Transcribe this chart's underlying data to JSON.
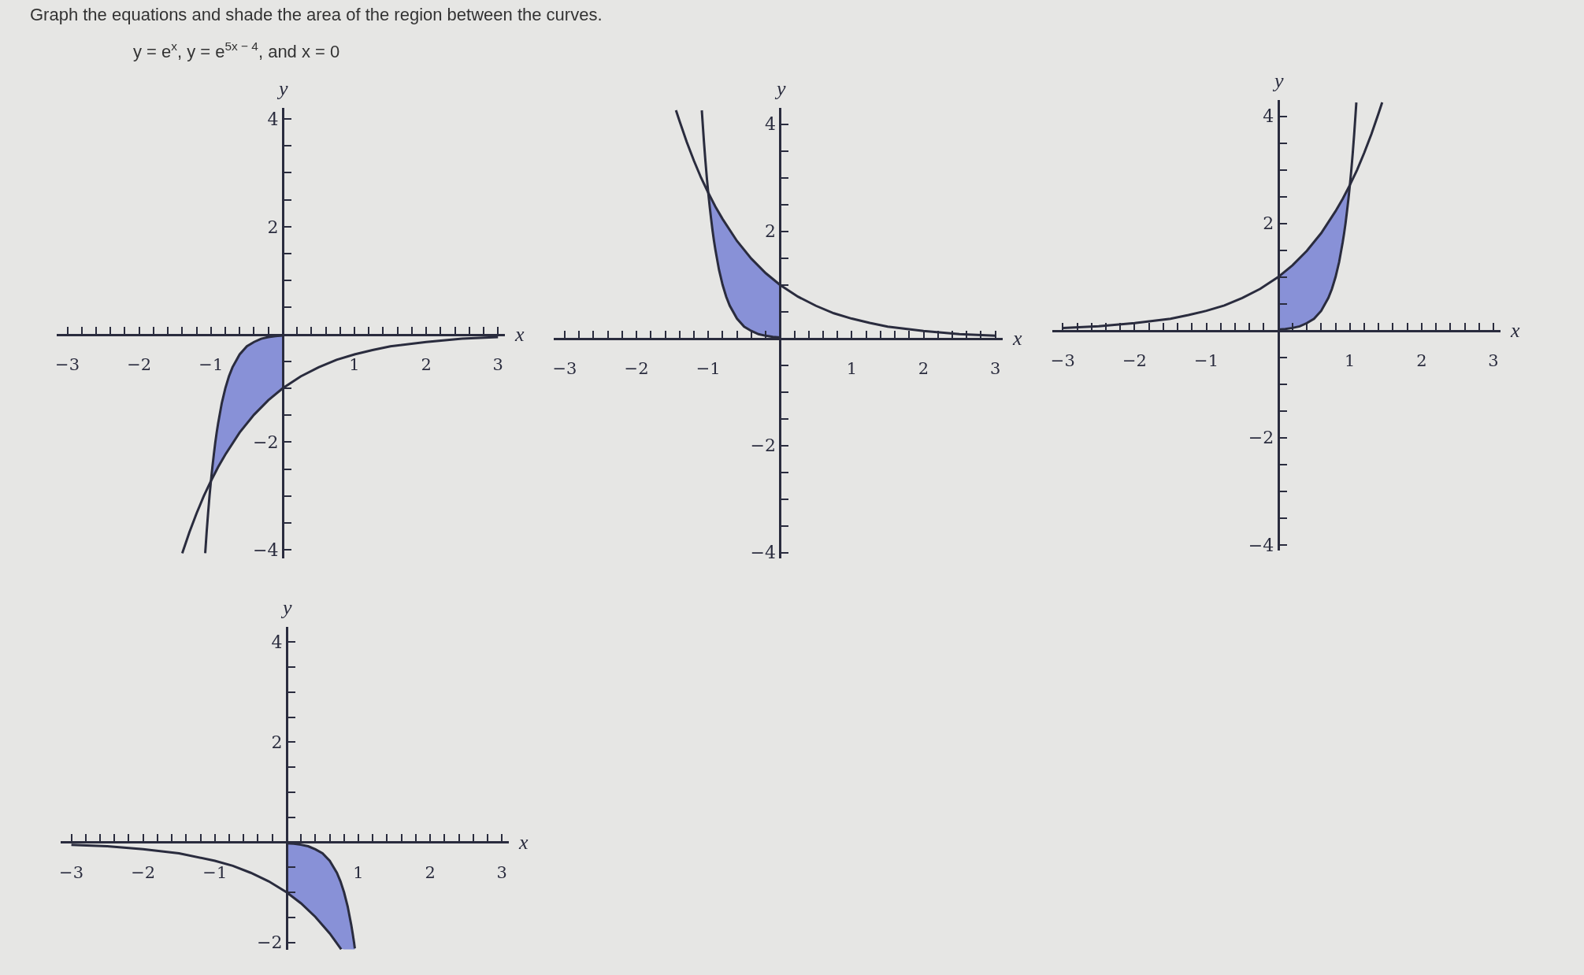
{
  "chart_data": [
    {
      "type": "line",
      "title": "Graph the equations and shade the area of the region between the curves.",
      "subtitle": "y = e$^{x}$, y = e$^{5x − 4}$, and x = 0",
      "xlabel": "x",
      "ylabel": "y",
      "xlim": [
        -3.15,
        3.1
      ],
      "ylim": [
        -4.15,
        4.2
      ],
      "xticks": [
        -3,
        {
          "value": -2.8,
          "label": null
        },
        {
          "value": -2.6,
          "label": null
        },
        {
          "value": -2.4,
          "label": null
        },
        {
          "value": -2.2,
          "label": null
        },
        -2,
        {
          "value": -1.8,
          "label": null
        },
        {
          "value": -1.6,
          "label": null
        },
        {
          "value": -1.4,
          "label": null
        },
        {
          "value": -1.2,
          "label": null
        },
        -1,
        {
          "value": -0.8,
          "label": null
        },
        {
          "value": -0.6,
          "label": null
        },
        {
          "value": -0.4,
          "label": null
        },
        {
          "value": -0.2,
          "label": null
        },
        {
          "value": 0.2,
          "label": null
        },
        {
          "value": 0.4,
          "label": null
        },
        {
          "value": 0.6,
          "label": null
        },
        {
          "value": 0.8,
          "label": null
        },
        1,
        {
          "value": 1.2,
          "label": null
        },
        {
          "value": 1.4,
          "label": null
        },
        {
          "value": 1.6,
          "label": null
        },
        {
          "value": 1.8,
          "label": null
        },
        2,
        {
          "value": 2.2,
          "label": null
        },
        {
          "value": 2.4,
          "label": null
        },
        {
          "value": 2.6,
          "label": null
        },
        {
          "value": 2.8,
          "label": null
        },
        3
      ],
      "yticks": [
        -4,
        {
          "value": -3.5,
          "label": null
        },
        {
          "value": -3,
          "label": null
        },
        {
          "value": -2.5,
          "label": null
        },
        -2,
        {
          "value": -1.5,
          "label": null
        },
        {
          "value": -1,
          "label": null
        },
        {
          "value": -0.5,
          "label": null
        },
        {
          "value": 0.5,
          "label": null
        },
        {
          "value": 1,
          "label": null
        },
        {
          "value": 1.5,
          "label": null
        },
        2,
        {
          "value": 2.5,
          "label": null
        },
        {
          "value": 3,
          "label": null
        },
        {
          "value": 3.5,
          "label": null
        },
        4
      ],
      "series": [
        {
          "color": "#2a2c3e",
          "x": [
            -1.4,
            -1.3,
            -1.2,
            -1.1,
            -1,
            -0.9,
            -0.8,
            -0.6,
            -0.4,
            -0.2,
            0,
            0.25,
            0.5,
            0.75,
            1,
            1.25,
            1.5,
            2,
            2.5,
            3
          ],
          "values": [
            -4.06,
            -3.67,
            -3.32,
            -3.0,
            -2.72,
            -2.46,
            -2.23,
            -1.82,
            -1.49,
            -1.22,
            -1,
            -0.78,
            -0.61,
            -0.47,
            -0.37,
            -0.29,
            -0.22,
            -0.14,
            -0.08,
            -0.05
          ]
        },
        {
          "color": "#2a2c3e",
          "x": [
            -1.08,
            -1.06,
            -1.04,
            -1.02,
            -1,
            -0.98,
            -0.96,
            -0.94,
            -0.92,
            -0.9,
            -0.85,
            -0.8,
            -0.75,
            -0.7,
            -0.6,
            -0.5,
            -0.4,
            -0.3,
            -0.2,
            -0.1,
            0
          ],
          "values": [
            -4.06,
            -3.67,
            -3.32,
            -3.0,
            -2.72,
            -2.46,
            -2.23,
            -2.01,
            -1.82,
            -1.65,
            -1.28,
            -1,
            -0.78,
            -0.61,
            -0.37,
            -0.22,
            -0.14,
            -0.08,
            -0.05,
            -0.03,
            -0.02
          ],
          "lower": [
            null,
            null,
            null,
            null,
            -2.72,
            -2.66,
            -2.61,
            -2.56,
            -2.51,
            -2.46,
            -2.34,
            -2.23,
            -2.12,
            -2.01,
            -1.82,
            -1.65,
            -1.49,
            -1.35,
            -1.22,
            -1.11,
            -1
          ],
          "upper": [
            null,
            null,
            null,
            null,
            -2.72,
            -2.46,
            -2.23,
            -2.01,
            -1.82,
            -1.65,
            -1.28,
            -1,
            -0.78,
            -0.61,
            -0.37,
            -0.22,
            -0.14,
            -0.08,
            -0.05,
            -0.03,
            -0.02
          ]
        }
      ]
    },
    {
      "type": "line",
      "xlabel": "x",
      "ylabel": "y",
      "xlim": [
        -3.15,
        3.1
      ],
      "ylim": [
        -4.1,
        4.3
      ],
      "xticks": [
        -3,
        {
          "value": -2.8,
          "label": null
        },
        {
          "value": -2.6,
          "label": null
        },
        {
          "value": -2.4,
          "label": null
        },
        {
          "value": -2.2,
          "label": null
        },
        -2,
        {
          "value": -1.8,
          "label": null
        },
        {
          "value": -1.6,
          "label": null
        },
        {
          "value": -1.4,
          "label": null
        },
        {
          "value": -1.2,
          "label": null
        },
        -1,
        {
          "value": -0.8,
          "label": null
        },
        {
          "value": -0.6,
          "label": null
        },
        {
          "value": -0.4,
          "label": null
        },
        {
          "value": -0.2,
          "label": null
        },
        {
          "value": 0.2,
          "label": null
        },
        {
          "value": 0.4,
          "label": null
        },
        {
          "value": 0.6,
          "label": null
        },
        {
          "value": 0.8,
          "label": null
        },
        1,
        {
          "value": 1.2,
          "label": null
        },
        {
          "value": 1.4,
          "label": null
        },
        {
          "value": 1.6,
          "label": null
        },
        {
          "value": 1.8,
          "label": null
        },
        2,
        {
          "value": 2.2,
          "label": null
        },
        {
          "value": 2.4,
          "label": null
        },
        {
          "value": 2.6,
          "label": null
        },
        {
          "value": 2.8,
          "label": null
        },
        3
      ],
      "yticks": [
        -4,
        {
          "value": -3.5,
          "label": null
        },
        {
          "value": -3,
          "label": null
        },
        {
          "value": -2.5,
          "label": null
        },
        -2,
        {
          "value": -1.5,
          "label": null
        },
        {
          "value": -1,
          "label": null
        },
        {
          "value": -0.5,
          "label": null
        },
        {
          "value": 0.5,
          "label": null
        },
        {
          "value": 1,
          "label": null
        },
        {
          "value": 1.5,
          "label": null
        },
        2,
        {
          "value": 2.5,
          "label": null
        },
        {
          "value": 3,
          "label": null
        },
        {
          "value": 3.5,
          "label": null
        },
        4
      ],
      "series": [
        {
          "color": "#2a2c3e",
          "x": [
            -1.45,
            -1.4,
            -1.3,
            -1.2,
            -1.1,
            -1,
            -0.9,
            -0.8,
            -0.6,
            -0.4,
            -0.2,
            0,
            0.25,
            0.5,
            0.75,
            1,
            1.25,
            1.5,
            2,
            2.5,
            3
          ],
          "values": [
            4.26,
            4.06,
            3.67,
            3.32,
            3.0,
            2.72,
            2.46,
            2.23,
            1.82,
            1.49,
            1.22,
            1,
            0.78,
            0.61,
            0.47,
            0.37,
            0.29,
            0.22,
            0.14,
            0.08,
            0.05
          ]
        },
        {
          "color": "#2a2c3e",
          "x": [
            -1.09,
            -1.08,
            -1.06,
            -1.04,
            -1.02,
            -1,
            -0.98,
            -0.96,
            -0.94,
            -0.92,
            -0.9,
            -0.85,
            -0.8,
            -0.75,
            -0.7,
            -0.6,
            -0.5,
            -0.4,
            -0.3,
            -0.2,
            -0.1,
            0
          ],
          "values": [
            4.26,
            4.06,
            3.67,
            3.32,
            3.0,
            2.72,
            2.46,
            2.23,
            2.01,
            1.82,
            1.65,
            1.28,
            1,
            0.78,
            0.61,
            0.37,
            0.22,
            0.14,
            0.08,
            0.05,
            0.03,
            0.02
          ],
          "lower": [
            null,
            null,
            null,
            null,
            null,
            2.72,
            2.46,
            2.23,
            2.01,
            1.82,
            1.65,
            1.28,
            1,
            0.78,
            0.61,
            0.37,
            0.22,
            0.14,
            0.08,
            0.05,
            0.03,
            0.02
          ],
          "upper": [
            null,
            null,
            null,
            null,
            null,
            2.72,
            2.66,
            2.61,
            2.56,
            2.51,
            2.46,
            2.34,
            2.23,
            2.12,
            2.01,
            1.82,
            1.65,
            1.49,
            1.35,
            1.22,
            1.11,
            1
          ]
        }
      ]
    },
    {
      "type": "line",
      "xlabel": "x",
      "ylabel": "y",
      "xlim": [
        -3.15,
        3.1
      ],
      "ylim": [
        -4.1,
        4.3
      ],
      "xticks": [
        -3,
        {
          "value": -2.8,
          "label": null
        },
        {
          "value": -2.6,
          "label": null
        },
        {
          "value": -2.4,
          "label": null
        },
        {
          "value": -2.2,
          "label": null
        },
        -2,
        {
          "value": -1.8,
          "label": null
        },
        {
          "value": -1.6,
          "label": null
        },
        {
          "value": -1.4,
          "label": null
        },
        {
          "value": -1.2,
          "label": null
        },
        -1,
        {
          "value": -0.8,
          "label": null
        },
        {
          "value": -0.6,
          "label": null
        },
        {
          "value": -0.4,
          "label": null
        },
        {
          "value": -0.2,
          "label": null
        },
        {
          "value": 0.2,
          "label": null
        },
        {
          "value": 0.4,
          "label": null
        },
        {
          "value": 0.6,
          "label": null
        },
        {
          "value": 0.8,
          "label": null
        },
        1,
        {
          "value": 1.2,
          "label": null
        },
        {
          "value": 1.4,
          "label": null
        },
        {
          "value": 1.6,
          "label": null
        },
        {
          "value": 1.8,
          "label": null
        },
        2,
        {
          "value": 2.2,
          "label": null
        },
        {
          "value": 2.4,
          "label": null
        },
        {
          "value": 2.6,
          "label": null
        },
        {
          "value": 2.8,
          "label": null
        },
        3
      ],
      "yticks": [
        -4,
        {
          "value": -3.5,
          "label": null
        },
        {
          "value": -3,
          "label": null
        },
        {
          "value": -2.5,
          "label": null
        },
        -2,
        {
          "value": -1.5,
          "label": null
        },
        {
          "value": -1,
          "label": null
        },
        {
          "value": -0.5,
          "label": null
        },
        {
          "value": 0.5,
          "label": null
        },
        {
          "value": 1,
          "label": null
        },
        {
          "value": 1.5,
          "label": null
        },
        2,
        {
          "value": 2.5,
          "label": null
        },
        {
          "value": 3,
          "label": null
        },
        {
          "value": 3.5,
          "label": null
        },
        4
      ],
      "series": [
        {
          "color": "#2a2c3e",
          "x": [
            -3,
            -2.5,
            -2,
            -1.5,
            -1.25,
            -1,
            -0.75,
            -0.5,
            -0.25,
            0,
            0.2,
            0.4,
            0.6,
            0.8,
            0.9,
            1,
            1.1,
            1.2,
            1.3,
            1.4,
            1.45
          ],
          "values": [
            0.05,
            0.08,
            0.14,
            0.22,
            0.29,
            0.37,
            0.47,
            0.61,
            0.78,
            1,
            1.22,
            1.49,
            1.82,
            2.23,
            2.46,
            2.72,
            3.0,
            3.32,
            3.67,
            4.06,
            4.26
          ]
        },
        {
          "color": "#2a2c3e",
          "x": [
            0,
            0.1,
            0.2,
            0.3,
            0.4,
            0.5,
            0.6,
            0.7,
            0.75,
            0.8,
            0.85,
            0.9,
            0.92,
            0.94,
            0.96,
            0.98,
            1,
            1.02,
            1.04,
            1.06,
            1.08,
            1.09
          ],
          "values": [
            0.02,
            0.03,
            0.05,
            0.08,
            0.14,
            0.22,
            0.37,
            0.61,
            0.78,
            1,
            1.28,
            1.65,
            1.82,
            2.01,
            2.23,
            2.46,
            2.72,
            3.0,
            3.32,
            3.67,
            4.06,
            4.26
          ],
          "lower": [
            0.02,
            0.03,
            0.05,
            0.08,
            0.14,
            0.22,
            0.37,
            0.61,
            0.78,
            1,
            1.28,
            1.65,
            1.82,
            2.01,
            2.23,
            2.46,
            2.72,
            null,
            null,
            null,
            null,
            null
          ],
          "upper": [
            1,
            1.11,
            1.22,
            1.35,
            1.49,
            1.65,
            1.82,
            2.01,
            2.12,
            2.23,
            2.34,
            2.46,
            2.51,
            2.56,
            2.61,
            2.66,
            2.72,
            null,
            null,
            null,
            null,
            null
          ]
        }
      ]
    },
    {
      "type": "line",
      "xlabel": "x",
      "ylabel": "y",
      "xlim": [
        -3.15,
        3.1
      ],
      "ylim": [
        -2.15,
        4.3
      ],
      "xticks": [
        -3,
        {
          "value": -2.8,
          "label": null
        },
        {
          "value": -2.6,
          "label": null
        },
        {
          "value": -2.4,
          "label": null
        },
        {
          "value": -2.2,
          "label": null
        },
        -2,
        {
          "value": -1.8,
          "label": null
        },
        {
          "value": -1.6,
          "label": null
        },
        {
          "value": -1.4,
          "label": null
        },
        {
          "value": -1.2,
          "label": null
        },
        -1,
        {
          "value": -0.8,
          "label": null
        },
        {
          "value": -0.6,
          "label": null
        },
        {
          "value": -0.4,
          "label": null
        },
        {
          "value": -0.2,
          "label": null
        },
        {
          "value": 0.2,
          "label": null
        },
        {
          "value": 0.4,
          "label": null
        },
        {
          "value": 0.6,
          "label": null
        },
        {
          "value": 0.8,
          "label": null
        },
        1,
        {
          "value": 1.2,
          "label": null
        },
        {
          "value": 1.4,
          "label": null
        },
        {
          "value": 1.6,
          "label": null
        },
        {
          "value": 1.8,
          "label": null
        },
        2,
        {
          "value": 2.2,
          "label": null
        },
        {
          "value": 2.4,
          "label": null
        },
        {
          "value": 2.6,
          "label": null
        },
        {
          "value": 2.8,
          "label": null
        },
        3
      ],
      "yticks": [
        -2,
        {
          "value": -1.5,
          "label": null
        },
        {
          "value": -1,
          "label": null
        },
        {
          "value": -0.5,
          "label": null
        },
        {
          "value": 0.5,
          "label": null
        },
        {
          "value": 1,
          "label": null
        },
        {
          "value": 1.5,
          "label": null
        },
        2,
        {
          "value": 2.5,
          "label": null
        },
        {
          "value": 3,
          "label": null
        },
        {
          "value": 3.5,
          "label": null
        },
        4
      ],
      "series": [
        {
          "color": "#2a2c3e",
          "x": [
            -3,
            -2.5,
            -2,
            -1.5,
            -1,
            -0.75,
            -0.5,
            -0.25,
            0,
            0.2,
            0.4,
            0.6,
            0.76
          ],
          "values": [
            -0.05,
            -0.08,
            -0.14,
            -0.22,
            -0.37,
            -0.47,
            -0.61,
            -0.78,
            -1,
            -1.22,
            -1.49,
            -1.82,
            -2.14
          ]
        },
        {
          "color": "#2a2c3e",
          "x": [
            0,
            0.1,
            0.2,
            0.3,
            0.4,
            0.5,
            0.6,
            0.7,
            0.75,
            0.8,
            0.85,
            0.9,
            0.92,
            0.94,
            0.95
          ],
          "values": [
            -0.02,
            -0.03,
            -0.05,
            -0.08,
            -0.14,
            -0.22,
            -0.37,
            -0.61,
            -0.78,
            -1,
            -1.28,
            -1.65,
            -1.82,
            -2.01,
            -2.12
          ],
          "lower": [
            -1,
            -1.11,
            -1.22,
            -1.35,
            -1.49,
            -1.65,
            -1.82,
            -2.01,
            -2.12,
            -2.14,
            -2.14,
            -2.14,
            -2.14,
            -2.14,
            -2.14
          ],
          "upper": [
            -0.02,
            -0.03,
            -0.05,
            -0.08,
            -0.14,
            -0.22,
            -0.37,
            -0.61,
            -0.78,
            -1,
            -1.28,
            -1.65,
            -1.82,
            -2.01,
            -2.12
          ]
        }
      ]
    }
  ]
}
